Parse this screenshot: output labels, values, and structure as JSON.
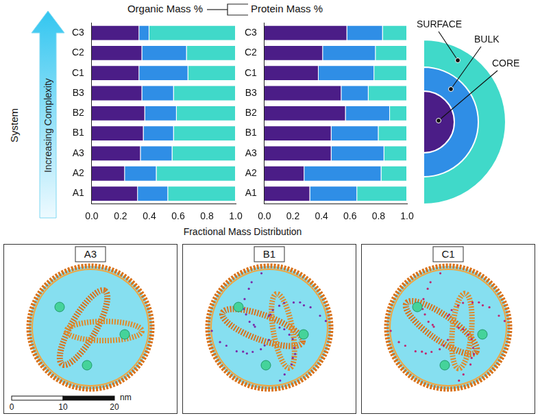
{
  "chart_data": [
    {
      "type": "bar",
      "title": "Organic Mass %",
      "orientation": "horizontal",
      "stacked": true,
      "grid": false,
      "categories": [
        "A1",
        "A2",
        "A3",
        "B1",
        "B2",
        "B3",
        "C1",
        "C2",
        "C3"
      ],
      "series": [
        {
          "name": "CORE",
          "color": "#4b1d87",
          "values": [
            0.32,
            0.23,
            0.34,
            0.36,
            0.37,
            0.35,
            0.33,
            0.35,
            0.33
          ]
        },
        {
          "name": "BULK",
          "color": "#2f8ee6",
          "values": [
            0.21,
            0.22,
            0.22,
            0.21,
            0.22,
            0.22,
            0.34,
            0.31,
            0.07
          ]
        },
        {
          "name": "SURFACE",
          "color": "#40d9c9",
          "values": [
            0.47,
            0.55,
            0.44,
            0.43,
            0.41,
            0.43,
            0.33,
            0.34,
            0.6
          ]
        }
      ],
      "xlim": [
        0,
        1
      ],
      "xticks": [
        {
          "value": 0,
          "label": "0.0"
        },
        {
          "value": 0.2,
          "label": "0.2"
        },
        {
          "value": 0.4,
          "label": "0.4"
        },
        {
          "value": 0.6,
          "label": "0.6"
        },
        {
          "value": 0.8,
          "label": "0.8"
        },
        {
          "value": 1,
          "label": "1.0"
        }
      ]
    },
    {
      "type": "bar",
      "title": "Protein Mass %",
      "orientation": "horizontal",
      "stacked": true,
      "grid": false,
      "categories": [
        "A1",
        "A2",
        "A3",
        "B1",
        "B2",
        "B3",
        "C1",
        "C2",
        "C3"
      ],
      "series": [
        {
          "name": "CORE",
          "color": "#4b1d87",
          "values": [
            0.32,
            0.28,
            0.47,
            0.47,
            0.57,
            0.54,
            0.38,
            0.41,
            0.58
          ]
        },
        {
          "name": "BULK",
          "color": "#2f8ee6",
          "values": [
            0.33,
            0.54,
            0.37,
            0.33,
            0.31,
            0.19,
            0.39,
            0.37,
            0.25
          ]
        },
        {
          "name": "SURFACE",
          "color": "#40d9c9",
          "values": [
            0.35,
            0.18,
            0.16,
            0.2,
            0.12,
            0.27,
            0.23,
            0.22,
            0.17
          ]
        }
      ],
      "xlim": [
        0,
        1
      ],
      "xticks": [
        {
          "value": 0,
          "label": "0.0"
        },
        {
          "value": 0.2,
          "label": "0.2"
        },
        {
          "value": 0.4,
          "label": "0.4"
        },
        {
          "value": 0.6,
          "label": "0.6"
        },
        {
          "value": 0.8,
          "label": "0.8"
        },
        {
          "value": 1,
          "label": "1.0"
        }
      ]
    }
  ],
  "axis_titles": {
    "x": "Fractional Mass Distribution",
    "y": "System"
  },
  "arrow_label": "Increasing Complexity",
  "panels": [
    "A3",
    "B1",
    "C1"
  ],
  "scale_bar": {
    "ticks": [
      0,
      10,
      20
    ],
    "unit": "nm"
  }
}
